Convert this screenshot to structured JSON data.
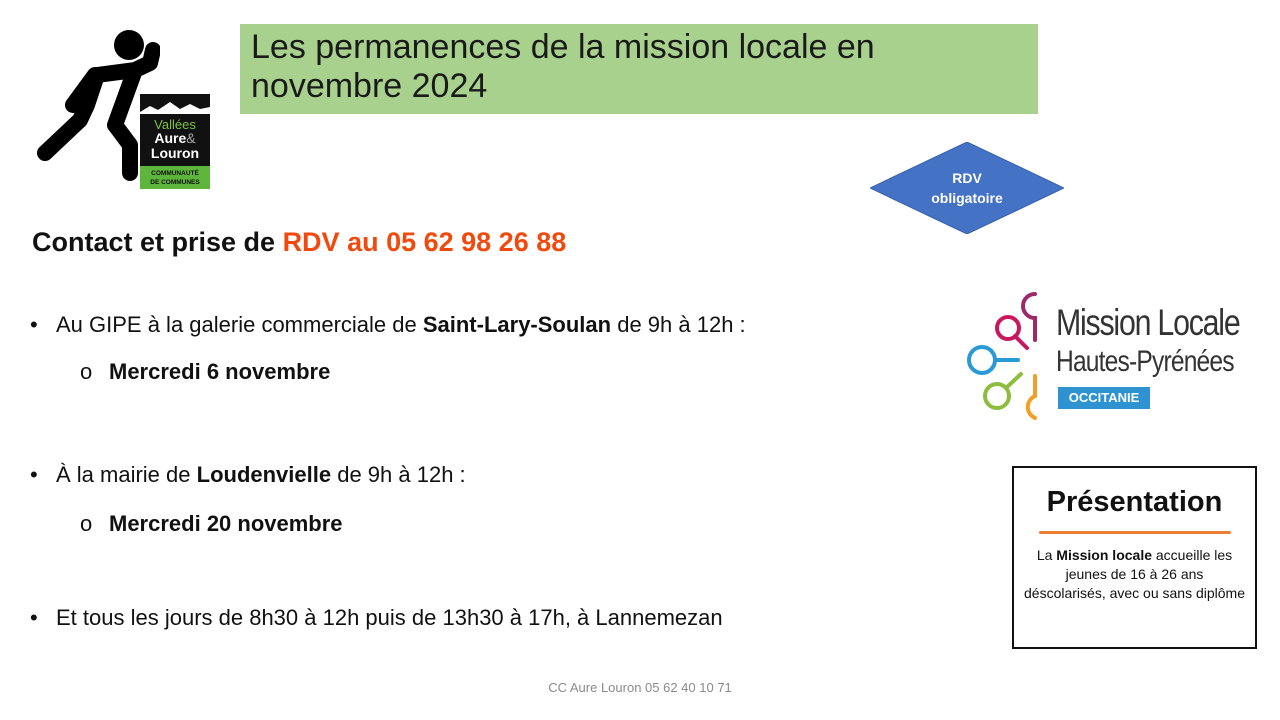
{
  "title": "Les permanences de la mission locale en novembre 2024",
  "logo_vallees": {
    "line1": "Vallées",
    "line2": "Aure",
    "amp": "&",
    "line3": "Louron",
    "sub1": "COMMUNAUTÉ",
    "sub2": "DE COMMUNES"
  },
  "rdv_badge": {
    "line1": "RDV",
    "line2": "obligatoire",
    "color": "#4472c4"
  },
  "contact": {
    "prefix": "Contact et prise de ",
    "highlight": "RDV au 05 62 98 26 88",
    "highlight_color": "#f04a0e"
  },
  "bullets": [
    {
      "pre": "Au GIPE à la galerie commerciale de  ",
      "bold": "Saint-Lary-Soulan",
      "post": "  de 9h à 12h :",
      "sub": "Mercredi 6 novembre"
    },
    {
      "pre": "À la mairie de ",
      "bold": "Loudenvielle",
      "post": " de 9h à 12h :",
      "sub": "Mercredi 20 novembre"
    },
    {
      "pre": "Et tous les jours de 8h30 à 12h puis de 13h30 à 17h, à Lannemezan"
    }
  ],
  "mission_logo": {
    "line1": "Mission Locale",
    "line2": "Hautes-Pyrénées",
    "badge": "OCCITANIE"
  },
  "presentation": {
    "heading": "Présentation",
    "pre": "La ",
    "bold": "Mission locale",
    "post": " accueille les jeunes de 16 à 26 ans déscolarisés, avec ou sans diplôme"
  },
  "footer": "CC Aure Louron 05 62 40 10 71"
}
